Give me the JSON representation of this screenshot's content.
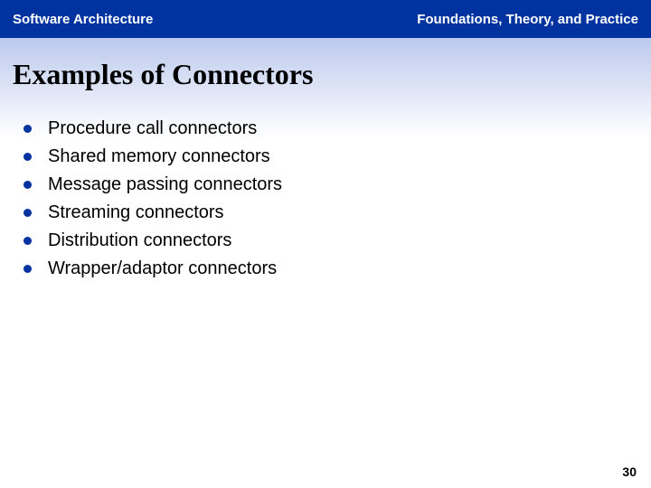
{
  "header": {
    "left": "Software Architecture",
    "right": "Foundations, Theory, and Practice"
  },
  "title": "Examples of Connectors",
  "bullets": [
    "Procedure call connectors",
    "Shared memory connectors",
    "Message passing connectors",
    "Streaming connectors",
    "Distribution connectors",
    "Wrapper/adaptor connectors"
  ],
  "page_number": "30",
  "style": {
    "header_bg": "#0033a0",
    "header_text_color": "#ffffff",
    "header_fontsize": 15,
    "title_color": "#000000",
    "title_fontsize": 32,
    "bullet_color": "#0033a0",
    "bullet_text_color": "#000000",
    "bullet_fontsize": 20,
    "background_color": "#ffffff",
    "gradient_top": "rgba(60,100,200,0.35)",
    "page_number_fontsize": 14
  }
}
